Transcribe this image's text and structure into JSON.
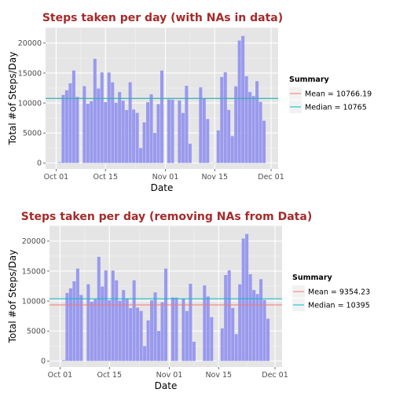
{
  "chart_data": [
    {
      "type": "bar",
      "title": "Steps taken per day (with NAs in data)",
      "xlabel": "Date",
      "ylabel": "Total #of Steps/Day",
      "x_ticks": [
        "Oct 01",
        "Oct 15",
        "Nov 01",
        "Nov 15",
        "Dec 01"
      ],
      "x_tick_dates": [
        "2012-10-01",
        "2012-10-15",
        "2012-11-01",
        "2012-11-15",
        "2012-12-01"
      ],
      "y_ticks": [
        0,
        5000,
        10000,
        15000,
        20000
      ],
      "xlim": [
        "2012-09-28",
        "2012-12-03"
      ],
      "ylim": [
        -1000,
        22600
      ],
      "bar_color": "#9999ee",
      "panel_background": "#e5e5e5",
      "grid": true,
      "legend": {
        "title": "Summary",
        "placement": "right",
        "items": [
          {
            "label": "Mean = ",
            "value": "10766.19",
            "color": "#f8766d"
          },
          {
            "label": "Median = ",
            "value": "10765",
            "color": "#00bfc4"
          }
        ]
      },
      "hlines": [
        {
          "name": "Mean",
          "y": 10766.19,
          "color": "#f8766d"
        },
        {
          "name": "Median",
          "y": 10765,
          "color": "#00bfc4"
        }
      ],
      "dates": [
        "2012-10-01",
        "2012-10-02",
        "2012-10-03",
        "2012-10-04",
        "2012-10-05",
        "2012-10-06",
        "2012-10-07",
        "2012-10-08",
        "2012-10-09",
        "2012-10-10",
        "2012-10-11",
        "2012-10-12",
        "2012-10-13",
        "2012-10-14",
        "2012-10-15",
        "2012-10-16",
        "2012-10-17",
        "2012-10-18",
        "2012-10-19",
        "2012-10-20",
        "2012-10-21",
        "2012-10-22",
        "2012-10-23",
        "2012-10-24",
        "2012-10-25",
        "2012-10-26",
        "2012-10-27",
        "2012-10-28",
        "2012-10-29",
        "2012-10-30",
        "2012-10-31",
        "2012-11-01",
        "2012-11-02",
        "2012-11-03",
        "2012-11-04",
        "2012-11-05",
        "2012-11-06",
        "2012-11-07",
        "2012-11-08",
        "2012-11-09",
        "2012-11-10",
        "2012-11-11",
        "2012-11-12",
        "2012-11-13",
        "2012-11-14",
        "2012-11-15",
        "2012-11-16",
        "2012-11-17",
        "2012-11-18",
        "2012-11-19",
        "2012-11-20",
        "2012-11-21",
        "2012-11-22",
        "2012-11-23",
        "2012-11-24",
        "2012-11-25",
        "2012-11-26",
        "2012-11-27",
        "2012-11-28",
        "2012-11-29",
        "2012-11-30"
      ],
      "values": [
        0,
        126,
        11352,
        12116,
        13294,
        15420,
        11015,
        0,
        12811,
        9900,
        10304,
        17382,
        12426,
        15098,
        10139,
        15084,
        13452,
        10056,
        11829,
        10395,
        8821,
        13460,
        8918,
        8355,
        2492,
        6778,
        10119,
        11458,
        5018,
        9819,
        15414,
        0,
        10600,
        10571,
        0,
        10439,
        8334,
        12883,
        3219,
        0,
        0,
        12608,
        10765,
        7336,
        0,
        41,
        5441,
        14339,
        15110,
        8841,
        4472,
        12787,
        20427,
        21194,
        14478,
        11834,
        11162,
        13646,
        10183,
        7047,
        0
      ]
    },
    {
      "type": "bar",
      "title": "Steps taken per day (removing NAs from Data)",
      "xlabel": "Date",
      "ylabel": "Total #of Steps/Day",
      "x_ticks": [
        "Oct 01",
        "Oct 15",
        "Nov 01",
        "Nov 15",
        "Dec 01"
      ],
      "x_tick_dates": [
        "2012-10-01",
        "2012-10-15",
        "2012-11-01",
        "2012-11-15",
        "2012-12-01"
      ],
      "y_ticks": [
        0,
        5000,
        10000,
        15000,
        20000
      ],
      "xlim": [
        "2012-09-28",
        "2012-12-03"
      ],
      "ylim": [
        -1000,
        22600
      ],
      "bar_color": "#9999ee",
      "panel_background": "#e5e5e5",
      "grid": true,
      "legend": {
        "title": "Summary",
        "placement": "right",
        "items": [
          {
            "label": "Mean = ",
            "value": "9354.23",
            "color": "#f8766d"
          },
          {
            "label": "Median = ",
            "value": "10395",
            "color": "#00bfc4"
          }
        ]
      },
      "hlines": [
        {
          "name": "Mean",
          "y": 9354.23,
          "color": "#f8766d"
        },
        {
          "name": "Median",
          "y": 10395,
          "color": "#00bfc4"
        }
      ],
      "dates": [
        "2012-10-01",
        "2012-10-02",
        "2012-10-03",
        "2012-10-04",
        "2012-10-05",
        "2012-10-06",
        "2012-10-07",
        "2012-10-08",
        "2012-10-09",
        "2012-10-10",
        "2012-10-11",
        "2012-10-12",
        "2012-10-13",
        "2012-10-14",
        "2012-10-15",
        "2012-10-16",
        "2012-10-17",
        "2012-10-18",
        "2012-10-19",
        "2012-10-20",
        "2012-10-21",
        "2012-10-22",
        "2012-10-23",
        "2012-10-24",
        "2012-10-25",
        "2012-10-26",
        "2012-10-27",
        "2012-10-28",
        "2012-10-29",
        "2012-10-30",
        "2012-10-31",
        "2012-11-01",
        "2012-11-02",
        "2012-11-03",
        "2012-11-04",
        "2012-11-05",
        "2012-11-06",
        "2012-11-07",
        "2012-11-08",
        "2012-11-09",
        "2012-11-10",
        "2012-11-11",
        "2012-11-12",
        "2012-11-13",
        "2012-11-14",
        "2012-11-15",
        "2012-11-16",
        "2012-11-17",
        "2012-11-18",
        "2012-11-19",
        "2012-11-20",
        "2012-11-21",
        "2012-11-22",
        "2012-11-23",
        "2012-11-24",
        "2012-11-25",
        "2012-11-26",
        "2012-11-27",
        "2012-11-28",
        "2012-11-29",
        "2012-11-30"
      ],
      "values": [
        0,
        126,
        11352,
        12116,
        13294,
        15420,
        11015,
        0,
        12811,
        9900,
        10304,
        17382,
        12426,
        15098,
        10139,
        15084,
        13452,
        10056,
        11829,
        10395,
        8821,
        13460,
        8918,
        8355,
        2492,
        6778,
        10119,
        11458,
        5018,
        9819,
        15414,
        0,
        10600,
        10571,
        0,
        10439,
        8334,
        12883,
        3219,
        0,
        0,
        12608,
        10765,
        7336,
        0,
        41,
        5441,
        14339,
        15110,
        8841,
        4472,
        12787,
        20427,
        21194,
        14478,
        11834,
        11162,
        13646,
        10183,
        7047,
        0
      ]
    }
  ]
}
